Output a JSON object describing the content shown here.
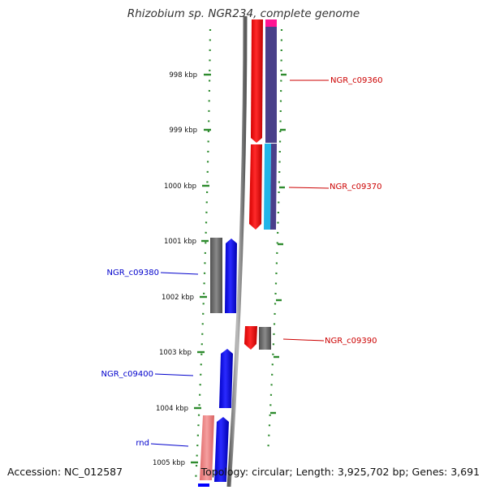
{
  "title": "Rhizobium sp. NGR234, complete genome",
  "footer": {
    "accession": "Accession: NC_012587",
    "stats": "Topology: circular; Length: 3,925,702 bp; Genes: 3,691"
  },
  "scale": {
    "tick_labels": [
      "998 kbp",
      "999 kbp",
      "1000 kbp",
      "1001 kbp",
      "1002 kbp",
      "1003 kbp",
      "1004 kbp",
      "1005 kbp"
    ]
  },
  "gene_labels": [
    {
      "id": "NGR_c09360",
      "text": "NGR_c09360",
      "color": "#cc0000"
    },
    {
      "id": "NGR_c09370",
      "text": "NGR_c09370",
      "color": "#cc0000"
    },
    {
      "id": "NGR_c09380",
      "text": "NGR_c09380",
      "color": "#0000cc"
    },
    {
      "id": "NGR_c09390",
      "text": "NGR_c09390",
      "color": "#cc0000"
    },
    {
      "id": "NGR_c09400",
      "text": "NGR_c09400",
      "color": "#0000cc"
    },
    {
      "id": "rnd",
      "text": "rnd",
      "color": "#0000cc"
    }
  ],
  "colors": {
    "forward_gene": "#ff0000",
    "reverse_gene": "#0000ff",
    "pink_gene": "#f08080",
    "cog_grey": "#6a6a6a",
    "cog_purple": "#4a3f8a",
    "cog_cyan": "#21b5e8",
    "cog_magenta": "#ff1493",
    "backbone": "#888888",
    "ticks": "#2e8b2e"
  }
}
